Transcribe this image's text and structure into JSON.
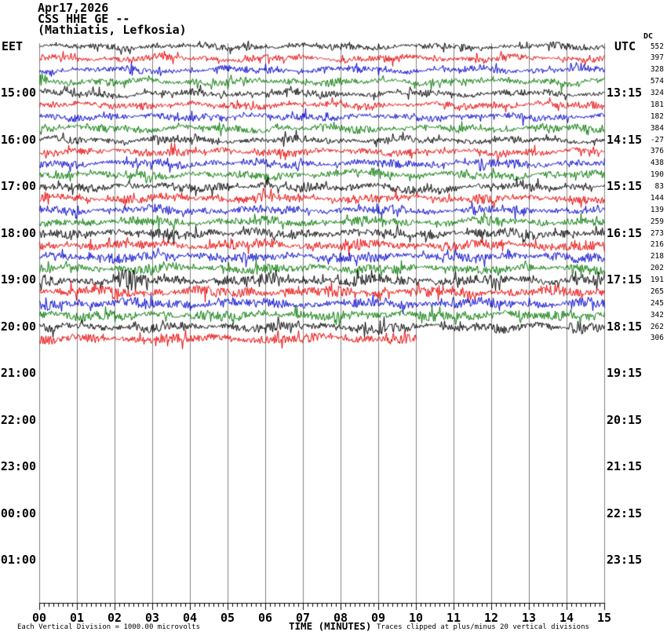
{
  "header": {
    "date": "Apr17,2026",
    "station_line": "CSS HHE GE --",
    "location_line": "(Mathiatis, Lefkosia)"
  },
  "axes": {
    "left_label": "EET",
    "right_label": "UTC",
    "dc_label": "DC",
    "xlabel": "TIME (MINUTES)",
    "x_ticks": [
      "00",
      "01",
      "02",
      "03",
      "04",
      "05",
      "06",
      "07",
      "08",
      "09",
      "10",
      "11",
      "12",
      "13",
      "14",
      "15"
    ],
    "left_hours": [
      "15:00",
      "16:00",
      "17:00",
      "18:00",
      "19:00",
      "20:00",
      "21:00",
      "22:00",
      "23:00",
      "00:00",
      "01:00"
    ],
    "right_hours": [
      "13:15",
      "14:15",
      "15:15",
      "16:15",
      "17:15",
      "18:15",
      "19:15",
      "20:15",
      "21:15",
      "22:15",
      "23:15"
    ]
  },
  "footer": {
    "scale_note": "Each Vertical Division = 1000.00 microvolts",
    "clip_note": "Traces clipped at plus/minus 20 vertical divisions"
  },
  "chart_data": {
    "type": "line",
    "title": "Helicorder record CSS HHE GE (Mathiatis, Lefkosia) Apr17,2026",
    "xlabel": "TIME (MINUTES)",
    "x_range": [
      0,
      15
    ],
    "grid": true,
    "minutes_per_line": 15,
    "minor_tick_seconds": 7.5,
    "colors": {
      "trace_cycle": [
        "#000000",
        "#e60000",
        "#0000cc",
        "#007700"
      ],
      "grid": "#808080",
      "axis": "#000000"
    },
    "dc_values": [
      552,
      397,
      328,
      574,
      324,
      181,
      182,
      384,
      -27,
      376,
      438,
      190,
      83,
      144,
      139,
      259,
      273,
      216,
      218,
      202,
      191,
      265,
      245,
      342,
      262,
      306
    ],
    "traces": [
      {
        "start_eet": "14:00",
        "c": 0,
        "amp": 3.0,
        "len": 1,
        "events": []
      },
      {
        "start_eet": "14:15",
        "c": 1,
        "amp": 3.2,
        "len": 1,
        "events": []
      },
      {
        "start_eet": "14:30",
        "c": 2,
        "amp": 3.2,
        "len": 1,
        "events": [
          {
            "t": 2.45,
            "a": 8,
            "w": 0.06,
            "kind": "burst"
          }
        ]
      },
      {
        "start_eet": "14:45",
        "c": 3,
        "amp": 3.4,
        "len": 1,
        "events": [
          {
            "t": 0.07,
            "a": 9,
            "w": 0.12,
            "kind": "burst"
          }
        ]
      },
      {
        "start_eet": "15:00",
        "c": 0,
        "amp": 3.4,
        "len": 1,
        "events": [
          {
            "t": 2.2,
            "a": -3,
            "w": 0.3,
            "kind": "drift"
          }
        ]
      },
      {
        "start_eet": "15:15",
        "c": 1,
        "amp": 3.4,
        "len": 1,
        "events": []
      },
      {
        "start_eet": "15:30",
        "c": 2,
        "amp": 3.4,
        "len": 1,
        "events": []
      },
      {
        "start_eet": "15:45",
        "c": 3,
        "amp": 3.6,
        "len": 1,
        "events": []
      },
      {
        "start_eet": "16:00",
        "c": 0,
        "amp": 3.4,
        "len": 1,
        "events": []
      },
      {
        "start_eet": "16:15",
        "c": 1,
        "amp": 3.6,
        "len": 1,
        "events": []
      },
      {
        "start_eet": "16:30",
        "c": 2,
        "amp": 3.8,
        "len": 1,
        "events": []
      },
      {
        "start_eet": "16:45",
        "c": 3,
        "amp": 3.8,
        "len": 1,
        "events": [
          {
            "t": 8.7,
            "a": 7,
            "w": 0.45,
            "kind": "drift"
          }
        ]
      },
      {
        "start_eet": "17:00",
        "c": 0,
        "amp": 4.2,
        "len": 1,
        "events": [
          {
            "t": 10.0,
            "a": -5,
            "w": 0.6,
            "kind": "drift"
          }
        ]
      },
      {
        "start_eet": "17:15",
        "c": 1,
        "amp": 4.2,
        "len": 1,
        "events": []
      },
      {
        "start_eet": "17:30",
        "c": 2,
        "amp": 4.0,
        "len": 1,
        "events": []
      },
      {
        "start_eet": "17:45",
        "c": 3,
        "amp": 4.2,
        "len": 1,
        "events": []
      },
      {
        "start_eet": "18:00",
        "c": 0,
        "amp": 4.8,
        "len": 1,
        "events": []
      },
      {
        "start_eet": "18:15",
        "c": 1,
        "amp": 4.8,
        "len": 1,
        "events": []
      },
      {
        "start_eet": "18:30",
        "c": 2,
        "amp": 4.6,
        "len": 1,
        "events": []
      },
      {
        "start_eet": "18:45",
        "c": 3,
        "amp": 4.6,
        "len": 1,
        "events": []
      },
      {
        "start_eet": "19:00",
        "c": 0,
        "amp": 5.2,
        "len": 1,
        "events": [
          {
            "t": 2.3,
            "a": 12,
            "w": 0.3,
            "kind": "burst"
          }
        ]
      },
      {
        "start_eet": "19:15",
        "c": 1,
        "amp": 5.2,
        "len": 1,
        "events": []
      },
      {
        "start_eet": "19:30",
        "c": 2,
        "amp": 4.8,
        "len": 1,
        "events": []
      },
      {
        "start_eet": "19:45",
        "c": 3,
        "amp": 4.8,
        "len": 1,
        "events": []
      },
      {
        "start_eet": "20:00",
        "c": 0,
        "amp": 4.4,
        "len": 1,
        "events": [
          {
            "t": 9.0,
            "a": 5,
            "w": 0.4,
            "kind": "burst"
          },
          {
            "t": 14.4,
            "a": 5,
            "w": 0.3,
            "kind": "burst"
          }
        ]
      },
      {
        "start_eet": "20:15",
        "c": 1,
        "amp": 4.6,
        "len": 0.667,
        "events": []
      }
    ]
  }
}
